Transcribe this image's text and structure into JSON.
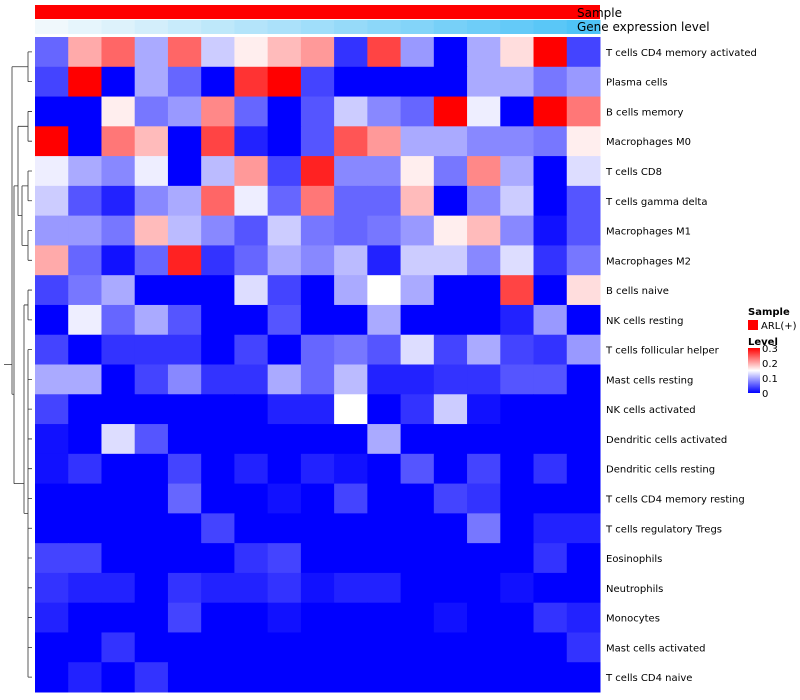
{
  "chart_data": {
    "type": "heatmap",
    "annotations": {
      "sample_label": "Sample",
      "gene_label": "Gene expression level",
      "sample_color": "#ff0000"
    },
    "rows": [
      "T cells CD4 memory activated",
      "Plasma cells",
      "B cells memory",
      "Macrophages M0",
      "T cells CD8",
      "T cells gamma delta",
      "Macrophages M1",
      "Macrophages M2",
      "B cells naive",
      "NK cells resting",
      "T cells follicular helper",
      "Mast cells resting",
      "NK cells activated",
      "Dendritic cells activated",
      "Dendritic cells resting",
      "T cells CD4 memory resting",
      "T cells regulatory  Tregs",
      "Eosinophils",
      "Neutrophils",
      "Monocytes",
      "Mast cells activated",
      "T cells CD4 naive"
    ],
    "values": [
      [
        0.06,
        0.2,
        0.24,
        0.1,
        0.24,
        0.12,
        0.16,
        0.19,
        0.21,
        0.03,
        0.26,
        0.09,
        0.0,
        0.1,
        0.17,
        0.3,
        0.04
      ],
      [
        0.04,
        0.3,
        0.0,
        0.1,
        0.06,
        0.0,
        0.27,
        0.3,
        0.04,
        0.0,
        0.0,
        0.0,
        0.0,
        0.1,
        0.1,
        0.07,
        0.09
      ],
      [
        0.0,
        0.0,
        0.16,
        0.07,
        0.09,
        0.22,
        0.06,
        0.0,
        0.05,
        0.12,
        0.08,
        0.06,
        0.3,
        0.14,
        0.0,
        0.3,
        0.23
      ],
      [
        0.3,
        0.0,
        0.23,
        0.19,
        0.0,
        0.26,
        0.02,
        0.0,
        0.05,
        0.25,
        0.21,
        0.1,
        0.1,
        0.08,
        0.08,
        0.07,
        0.16
      ],
      [
        0.14,
        0.1,
        0.08,
        0.14,
        0.0,
        0.11,
        0.21,
        0.04,
        0.28,
        0.08,
        0.08,
        0.16,
        0.07,
        0.22,
        0.1,
        0.0,
        0.13
      ],
      [
        0.12,
        0.05,
        0.02,
        0.08,
        0.1,
        0.24,
        0.14,
        0.06,
        0.23,
        0.06,
        0.06,
        0.19,
        0.0,
        0.08,
        0.12,
        0.0,
        0.05
      ],
      [
        0.09,
        0.09,
        0.07,
        0.19,
        0.11,
        0.08,
        0.05,
        0.12,
        0.07,
        0.06,
        0.07,
        0.09,
        0.16,
        0.19,
        0.08,
        0.01,
        0.05
      ],
      [
        0.2,
        0.06,
        0.01,
        0.06,
        0.28,
        0.03,
        0.06,
        0.1,
        0.08,
        0.11,
        0.02,
        0.12,
        0.12,
        0.08,
        0.13,
        0.03,
        0.07
      ],
      [
        0.04,
        0.07,
        0.1,
        0.0,
        0.0,
        0.0,
        0.13,
        0.04,
        0.0,
        0.1,
        0.15,
        0.1,
        0.0,
        0.0,
        0.26,
        0.0,
        0.17
      ],
      [
        0.0,
        0.14,
        0.06,
        0.1,
        0.05,
        0.0,
        0.0,
        0.05,
        0.0,
        0.0,
        0.1,
        0.0,
        0.0,
        0.0,
        0.02,
        0.09,
        0.0
      ],
      [
        0.04,
        0.0,
        0.03,
        0.03,
        0.03,
        0.0,
        0.04,
        0.0,
        0.06,
        0.07,
        0.05,
        0.13,
        0.04,
        0.1,
        0.04,
        0.03,
        0.09
      ],
      [
        0.1,
        0.1,
        0.0,
        0.04,
        0.08,
        0.03,
        0.03,
        0.1,
        0.06,
        0.11,
        0.02,
        0.02,
        0.03,
        0.03,
        0.05,
        0.05,
        0.0
      ],
      [
        0.04,
        0.0,
        0.0,
        0.0,
        0.0,
        0.0,
        0.0,
        0.02,
        0.02,
        0.15,
        0.0,
        0.03,
        0.12,
        0.01,
        0.0,
        0.0,
        0.0
      ],
      [
        0.01,
        0.0,
        0.13,
        0.05,
        0.0,
        0.0,
        0.0,
        0.0,
        0.0,
        0.0,
        0.1,
        0.0,
        0.0,
        0.0,
        0.0,
        0.0,
        0.0
      ],
      [
        0.01,
        0.03,
        0.0,
        0.0,
        0.04,
        0.0,
        0.02,
        0.0,
        0.02,
        0.01,
        0.0,
        0.05,
        0.0,
        0.04,
        0.0,
        0.03,
        0.0
      ],
      [
        0.0,
        0.0,
        0.0,
        0.0,
        0.06,
        0.0,
        0.0,
        0.01,
        0.0,
        0.04,
        0.0,
        0.0,
        0.04,
        0.03,
        0.0,
        0.0,
        0.0
      ],
      [
        0.0,
        0.0,
        0.0,
        0.0,
        0.0,
        0.04,
        0.0,
        0.0,
        0.0,
        0.0,
        0.0,
        0.0,
        0.0,
        0.07,
        0.0,
        0.02,
        0.02
      ],
      [
        0.04,
        0.04,
        0.0,
        0.0,
        0.0,
        0.0,
        0.03,
        0.04,
        0.0,
        0.0,
        0.0,
        0.0,
        0.0,
        0.0,
        0.0,
        0.03,
        0.0
      ],
      [
        0.03,
        0.02,
        0.02,
        0.0,
        0.03,
        0.02,
        0.02,
        0.03,
        0.01,
        0.02,
        0.02,
        0.0,
        0.0,
        0.0,
        0.01,
        0.0,
        0.0
      ],
      [
        0.02,
        0.0,
        0.0,
        0.0,
        0.04,
        0.0,
        0.0,
        0.01,
        0.0,
        0.0,
        0.0,
        0.0,
        0.01,
        0.0,
        0.0,
        0.03,
        0.02
      ],
      [
        0.0,
        0.0,
        0.03,
        0.0,
        0.0,
        0.0,
        0.0,
        0.0,
        0.0,
        0.0,
        0.0,
        0.0,
        0.0,
        0.0,
        0.0,
        0.0,
        0.03
      ],
      [
        0.0,
        0.02,
        0.0,
        0.03,
        0.0,
        0.0,
        0.0,
        0.0,
        0.0,
        0.0,
        0.0,
        0.0,
        0.0,
        0.0,
        0.0,
        0.0,
        0.0
      ]
    ],
    "gene_expression": [
      0.0,
      0.06,
      0.12,
      0.18,
      0.25,
      0.31,
      0.37,
      0.43,
      0.5,
      0.56,
      0.62,
      0.68,
      0.75,
      0.81,
      0.87,
      0.93,
      1.0
    ],
    "color_scale": {
      "low": "#0000ff",
      "mid": "#ffffff",
      "high": "#ff0000",
      "mid_value": 0.15
    },
    "vmin": 0,
    "vmax": 0.3,
    "legend": {
      "sample_title": "Sample",
      "sample_entry": "ARL(+)",
      "level_title": "Level",
      "ticks": [
        0.3,
        0.2,
        0.1,
        0
      ],
      "tick_labels": [
        "0.3",
        "0.2",
        "0.1",
        "0"
      ]
    }
  }
}
